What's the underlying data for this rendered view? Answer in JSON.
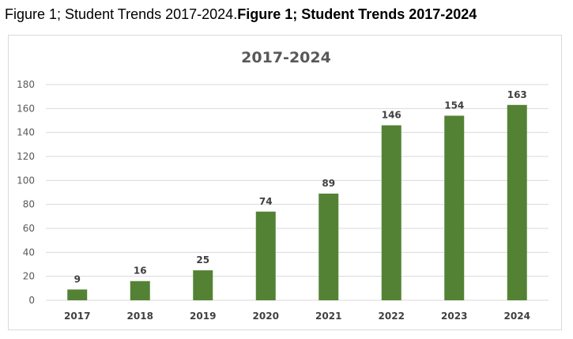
{
  "caption": {
    "normal": "Figure 1; Student Trends 2017-2024.",
    "bold": "Figure 1; Student Trends 2017-2024"
  },
  "chart_data": {
    "type": "bar",
    "title": "2017-2024",
    "categories": [
      "2017",
      "2018",
      "2019",
      "2020",
      "2021",
      "2022",
      "2023",
      "2024"
    ],
    "values": [
      9,
      16,
      25,
      74,
      89,
      146,
      154,
      163
    ],
    "ylim": [
      0,
      180
    ],
    "yticks": [
      0,
      20,
      40,
      60,
      80,
      100,
      120,
      140,
      160,
      180
    ],
    "grid": true,
    "legend": "none",
    "bar_color": "#548235",
    "grid_color": "#d9d9d9"
  }
}
